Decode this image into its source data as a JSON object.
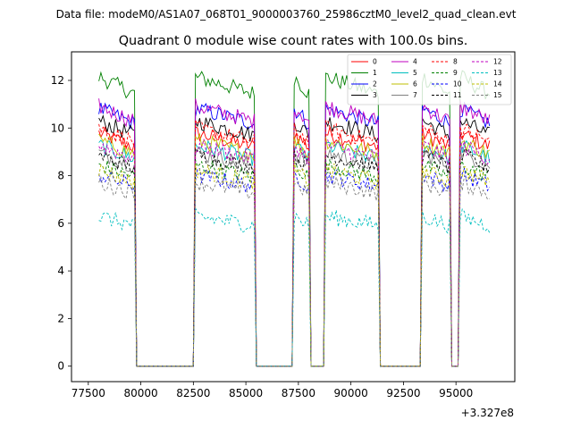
{
  "chart_data": {
    "type": "line",
    "suptitle": "Data file: modeM0/AS1A07_068T01_9000003760_25986cztM0_level2_quad_clean.evt",
    "title": "Quadrant 0 module wise count rates with 100.0s bins.",
    "xlabel": "",
    "ylabel": "",
    "x_offset_label": "+3.327e8",
    "xlim": [
      76700,
      97800
    ],
    "ylim": [
      -0.65,
      13.2
    ],
    "xticks": [
      77500,
      80000,
      82500,
      85000,
      87500,
      90000,
      92500,
      95000
    ],
    "xtick_labels": [
      "77500",
      "80000",
      "82500",
      "85000",
      "87500",
      "90000",
      "92500",
      "95000"
    ],
    "yticks": [
      0,
      2,
      4,
      6,
      8,
      10,
      12
    ],
    "ytick_labels": [
      "0",
      "2",
      "4",
      "6",
      "8",
      "10",
      "12"
    ],
    "grid": false,
    "legend_position": "top-right",
    "segments": [
      {
        "start": 78000,
        "end": 79700
      },
      {
        "start": 82600,
        "end": 85400
      },
      {
        "start": 87300,
        "end": 88000
      },
      {
        "start": 88800,
        "end": 91300
      },
      {
        "start": 93400,
        "end": 94700
      },
      {
        "start": 95200,
        "end": 96600
      }
    ],
    "x_start": 78000,
    "x_end": 96600,
    "bin_size": 100,
    "series": [
      {
        "name": "0",
        "color": "#ff0000",
        "dash": "solid",
        "level": 9.5
      },
      {
        "name": "1",
        "color": "#008000",
        "dash": "solid",
        "level": 11.8
      },
      {
        "name": "2",
        "color": "#0000ff",
        "dash": "solid",
        "level": 10.5
      },
      {
        "name": "3",
        "color": "#000000",
        "dash": "solid",
        "level": 10.0
      },
      {
        "name": "4",
        "color": "#bf00bf",
        "dash": "solid",
        "level": 10.6
      },
      {
        "name": "5",
        "color": "#00bfbf",
        "dash": "solid",
        "level": 9.0
      },
      {
        "name": "6",
        "color": "#bfbf00",
        "dash": "solid",
        "level": 9.2
      },
      {
        "name": "7",
        "color": "#808080",
        "dash": "solid",
        "level": 8.7
      },
      {
        "name": "8",
        "color": "#ff0000",
        "dash": "dashed",
        "level": 9.7
      },
      {
        "name": "9",
        "color": "#008000",
        "dash": "dashed",
        "level": 8.2
      },
      {
        "name": "10",
        "color": "#0000ff",
        "dash": "dashed",
        "level": 7.8
      },
      {
        "name": "11",
        "color": "#000000",
        "dash": "dashed",
        "level": 8.6
      },
      {
        "name": "12",
        "color": "#bf00bf",
        "dash": "dashed",
        "level": 9.0
      },
      {
        "name": "13",
        "color": "#00bfbf",
        "dash": "dashed",
        "level": 6.1
      },
      {
        "name": "14",
        "color": "#bfbf00",
        "dash": "dashed",
        "level": 8.0
      },
      {
        "name": "15",
        "color": "#808080",
        "dash": "dashed",
        "level": 7.5
      }
    ]
  }
}
